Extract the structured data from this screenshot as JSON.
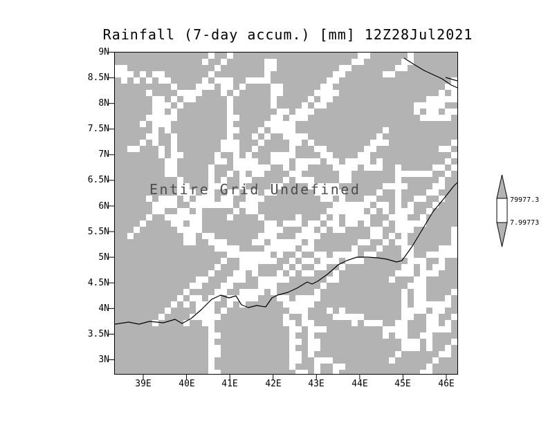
{
  "plot": {
    "colors": {
      "background": "#ffffff",
      "grid_fill": "#b3b3b3",
      "speckle": "#ffffff",
      "line": "#000000",
      "undefined_text": "#4d4d4d"
    }
  },
  "chart_data": {
    "type": "heatmap",
    "title": "Rainfall (7-day accum.) [mm] 12Z28Jul2021",
    "status_annotation": "Entire Grid Undefined",
    "x_tick_labels": [
      "39E",
      "40E",
      "41E",
      "42E",
      "43E",
      "44E",
      "45E",
      "46E"
    ],
    "y_tick_labels": [
      "9N",
      "8.5N",
      "8N",
      "7.5N",
      "7N",
      "6.5N",
      "6N",
      "5.5N",
      "5N",
      "4.5N",
      "4N",
      "3.5N",
      "3N"
    ],
    "x_range": [
      38.35,
      46.25
    ],
    "y_range": [
      2.73,
      9.0
    ],
    "x_unit": "degrees east",
    "y_unit": "degrees north",
    "values": null,
    "grid": "off",
    "overlay": "coastlines",
    "colorbar": {
      "orientation": "vertical",
      "position": "right",
      "levels": [
        "79977.3",
        "7.99773"
      ],
      "cell_colors": [
        "#b3b3b3",
        "#ffffff",
        "#b3b3b3"
      ]
    }
  }
}
